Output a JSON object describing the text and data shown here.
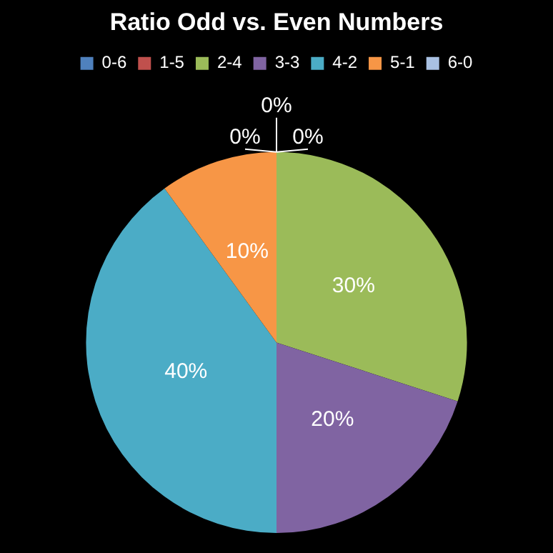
{
  "chart_data": {
    "type": "pie",
    "title": "Ratio Odd vs. Even Numbers",
    "categories": [
      "0-6",
      "1-5",
      "2-4",
      "3-3",
      "4-2",
      "5-1",
      "6-0"
    ],
    "values": [
      0,
      0,
      30,
      20,
      40,
      10,
      0
    ],
    "colors": [
      "#4f81bd",
      "#c0504d",
      "#9bbb59",
      "#8064a2",
      "#4bacc6",
      "#f79646",
      "#a9c1e3"
    ],
    "value_labels": [
      "0%",
      "0%",
      "30%",
      "20%",
      "40%",
      "10%",
      "0%"
    ],
    "legend": "top"
  }
}
